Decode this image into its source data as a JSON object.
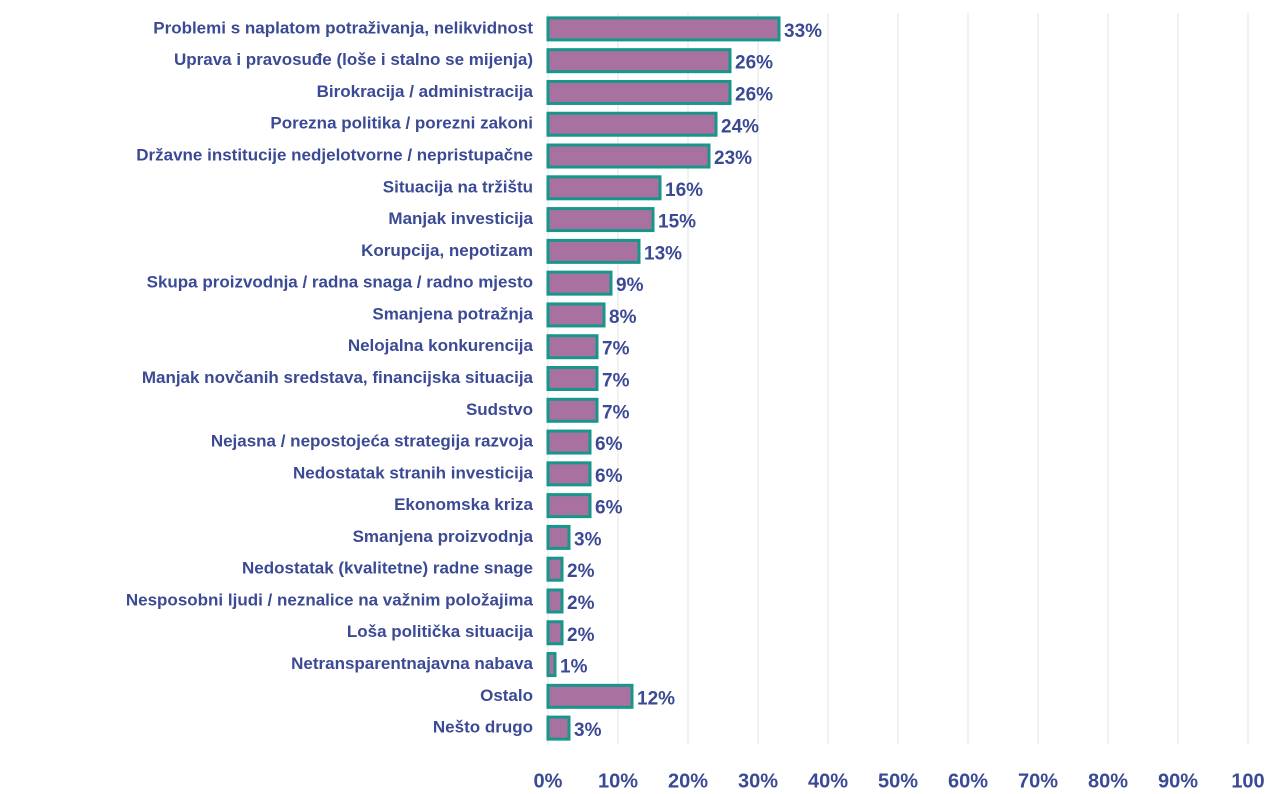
{
  "chart_data": {
    "type": "bar",
    "orientation": "horizontal",
    "categories": [
      "Problemi s naplatom potraživanja, nelikvidnost",
      "Uprava i pravosuđe (loše i stalno se mijenja)",
      "Birokracija / administracija",
      "Porezna politika / porezni zakoni",
      "Državne institucije nedjelotvorne / nepristupačne",
      "Situacija na tržištu",
      "Manjak investicija",
      "Korupcija, nepotizam",
      "Skupa proizvodnja / radna snaga / radno mjesto",
      "Smanjena potražnja",
      "Nelojalna konkurencija",
      "Manjak novčanih sredstava, financijska situacija",
      "Sudstvo",
      "Nejasna / nepostojeća strategija razvoja",
      "Nedostatak stranih investicija",
      "Ekonomska kriza",
      "Smanjena proizvodnja",
      "Nedostatak (kvalitetne) radne snage",
      "Nesposobni ljudi / neznalice na važnim položajima",
      "Loša politička situacija",
      "Netransparentnajavna nabava",
      "Ostalo",
      "Nešto drugo"
    ],
    "values": [
      33,
      26,
      26,
      24,
      23,
      16,
      15,
      13,
      9,
      8,
      7,
      7,
      7,
      6,
      6,
      6,
      3,
      2,
      2,
      2,
      1,
      12,
      3
    ],
    "value_labels": [
      "33%",
      "26%",
      "26%",
      "24%",
      "23%",
      "16%",
      "15%",
      "13%",
      "9%",
      "8%",
      "7%",
      "7%",
      "7%",
      "6%",
      "6%",
      "6%",
      "3%",
      "2%",
      "2%",
      "2%",
      "1%",
      "12%",
      "3%"
    ],
    "color": "#a8719f",
    "edge_color": "#17968a",
    "xlim": [
      0,
      100
    ],
    "xticks": [
      {
        "value": 0,
        "label": "0%"
      },
      {
        "value": 10,
        "label": "10%"
      },
      {
        "value": 20,
        "label": "20%"
      },
      {
        "value": 30,
        "label": "30%"
      },
      {
        "value": 40,
        "label": "40%"
      },
      {
        "value": 50,
        "label": "50%"
      },
      {
        "value": 60,
        "label": "60%"
      },
      {
        "value": 70,
        "label": "70%"
      },
      {
        "value": 80,
        "label": "80%"
      },
      {
        "value": 90,
        "label": "90%"
      },
      100
    ],
    "grid": true
  }
}
